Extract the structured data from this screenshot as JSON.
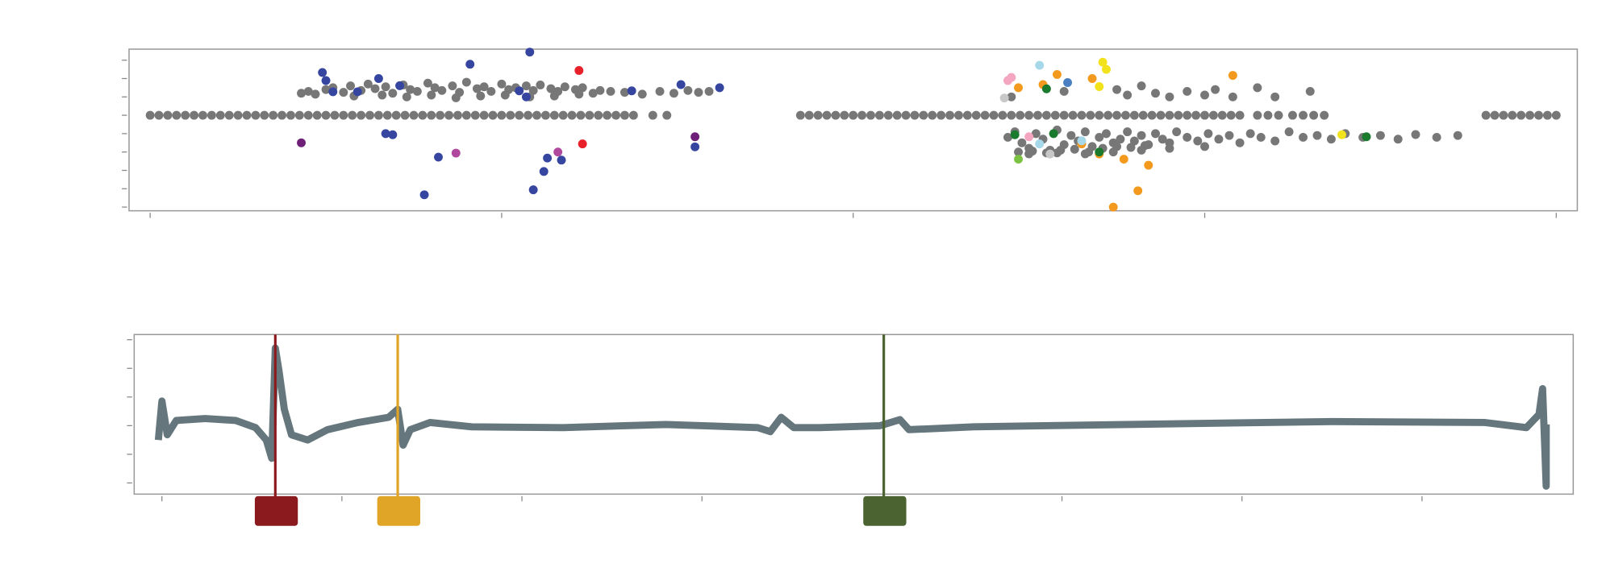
{
  "chart_data": [
    {
      "type": "scatter",
      "xlim": [
        -0.06,
        4.06
      ],
      "ylim": [
        -4.2,
        4.6
      ],
      "xticks": [
        0,
        1,
        2,
        3,
        4
      ],
      "yticks": [
        -4,
        -3,
        -2,
        -1,
        0,
        1,
        2,
        3,
        4
      ],
      "series": [
        {
          "color": "#777777",
          "x": [
            0,
            0.025,
            0.05,
            0.075,
            0.1,
            0.125,
            0.15,
            0.175,
            0.2,
            0.225,
            0.25,
            0.275,
            0.3,
            0.325,
            0.35,
            0.375,
            0.4,
            0.425,
            0.45,
            0.475,
            0.5,
            0.525,
            0.55,
            0.575,
            0.6,
            0.625,
            0.65,
            0.675,
            0.7,
            0.725,
            0.75,
            0.775,
            0.8,
            0.825,
            0.85,
            0.875,
            0.9,
            0.925,
            0.95,
            0.975,
            1,
            1.025,
            1.05,
            1.075,
            1.1,
            1.125,
            1.15,
            1.175,
            1.2,
            1.225,
            1.25,
            1.275,
            1.3,
            1.325,
            1.35,
            1.375,
            1.43,
            1.47
          ],
          "values": [
            1,
            1,
            1,
            1,
            1,
            1,
            1,
            1,
            1,
            1,
            1,
            1,
            1,
            1,
            1,
            1,
            1,
            1,
            1,
            1,
            1,
            1,
            1,
            1,
            1,
            1,
            1,
            1,
            1,
            1,
            1,
            1,
            1,
            1,
            1,
            1,
            1,
            1,
            1,
            1,
            1,
            1,
            1,
            1,
            1,
            1,
            1,
            1,
            1,
            1,
            1,
            1,
            1,
            1,
            1,
            1,
            1,
            1
          ]
        },
        {
          "color": "#777777",
          "x": [
            1.85,
            1.875,
            1.9,
            1.925,
            1.95,
            1.975,
            2,
            2.025,
            2.05,
            2.075,
            2.1,
            2.125,
            2.15,
            2.175,
            2.2,
            2.225,
            2.25,
            2.275,
            2.3,
            2.325,
            2.35,
            2.375,
            2.4,
            2.425,
            2.45,
            2.475,
            2.5,
            2.525,
            2.55,
            2.575,
            2.6,
            2.625,
            2.65,
            2.675,
            2.7,
            2.725,
            2.75,
            2.775,
            2.8,
            2.825,
            2.85,
            2.875,
            2.9,
            2.925,
            2.95,
            2.975,
            3,
            3.025,
            3.05,
            3.075,
            3.1,
            3.15,
            3.18,
            3.21,
            3.25,
            3.28,
            3.31,
            3.34,
            3.8,
            3.825,
            3.85,
            3.875,
            3.9,
            3.925,
            3.95,
            3.975,
            4
          ],
          "values": [
            1,
            1,
            1,
            1,
            1,
            1,
            1,
            1,
            1,
            1,
            1,
            1,
            1,
            1,
            1,
            1,
            1,
            1,
            1,
            1,
            1,
            1,
            1,
            1,
            1,
            1,
            1,
            1,
            1,
            1,
            1,
            1,
            1,
            1,
            1,
            1,
            1,
            1,
            1,
            1,
            1,
            1,
            1,
            1,
            1,
            1,
            1,
            1,
            1,
            1,
            1,
            1,
            1,
            1,
            1,
            1,
            1,
            1,
            1,
            1,
            1,
            1,
            1,
            1,
            1,
            1,
            1
          ]
        },
        {
          "color": "#777777",
          "x": [
            0.43,
            0.45,
            0.47,
            0.5,
            0.52,
            0.55,
            0.57,
            0.6,
            0.62,
            0.64,
            0.67,
            0.69,
            0.72,
            0.74,
            0.76,
            0.79,
            0.81,
            0.83,
            0.86,
            0.88,
            0.9,
            0.93,
            0.95,
            0.97,
            1.0,
            1.02,
            1.04,
            1.07,
            1.09,
            1.11,
            1.14,
            1.16,
            1.18,
            1.21,
            1.23,
            1.26,
            1.28,
            1.31,
            1.35,
            1.4,
            1.45,
            1.49,
            1.53,
            1.56,
            1.59,
            0.58,
            0.66,
            0.73,
            0.8,
            0.87,
            0.94,
            1.01,
            1.08,
            1.15,
            1.22
          ],
          "values": [
            2.2,
            2.3,
            2.15,
            2.4,
            2.5,
            2.25,
            2.6,
            2.35,
            2.7,
            2.45,
            2.55,
            2.2,
            2.65,
            2.4,
            2.3,
            2.75,
            2.5,
            2.35,
            2.6,
            2.25,
            2.8,
            2.45,
            2.55,
            2.3,
            2.7,
            2.4,
            2.5,
            2.6,
            2.35,
            2.65,
            2.45,
            2.3,
            2.55,
            2.4,
            2.5,
            2.2,
            2.35,
            2.3,
            2.25,
            2.15,
            2.3,
            2.2,
            2.35,
            2.25,
            2.3,
            2.05,
            2.1,
            2.0,
            2.1,
            1.95,
            2.05,
            2.1,
            2.0,
            2.05,
            2.15
          ]
        },
        {
          "color": "#777777",
          "x": [
            2.44,
            2.46,
            2.48,
            2.5,
            2.52,
            2.54,
            2.56,
            2.58,
            2.6,
            2.62,
            2.64,
            2.66,
            2.68,
            2.7,
            2.72,
            2.74,
            2.76,
            2.78,
            2.8,
            2.82,
            2.84,
            2.86,
            2.88,
            2.9,
            2.92,
            2.95,
            2.98,
            3.01,
            3.04,
            3.07,
            3.1,
            3.13,
            3.16,
            3.2,
            3.24,
            3.28,
            3.32,
            3.36,
            3.4,
            3.45,
            3.5,
            3.55,
            3.6,
            3.66,
            3.72,
            2.47,
            2.51,
            2.55,
            2.59,
            2.63,
            2.67,
            2.71,
            2.75,
            2.79,
            2.83,
            2.5,
            2.58,
            2.66,
            2.74,
            2.82,
            2.9,
            3.0
          ],
          "values": [
            -0.2,
            0.1,
            -0.5,
            -0.8,
            0,
            -0.3,
            -0.9,
            0.2,
            -0.6,
            -0.1,
            -0.4,
            0.1,
            -0.7,
            -0.2,
            0,
            -0.5,
            -0.3,
            0.1,
            -0.4,
            -0.1,
            -0.6,
            0,
            -0.3,
            -0.5,
            0.1,
            -0.2,
            -0.4,
            0,
            -0.3,
            -0.1,
            -0.5,
            0,
            -0.2,
            -0.4,
            0.1,
            -0.2,
            -0.1,
            -0.3,
            0,
            -0.2,
            -0.1,
            -0.3,
            -0.05,
            -0.2,
            -0.1,
            -1.0,
            -0.95,
            -1.05,
            -0.9,
            -0.85,
            -1.0,
            -0.8,
            -0.7,
            -0.75,
            -0.65,
            -1.1,
            -1.05,
            -1.1,
            -1.0,
            -0.9,
            -0.8,
            -0.7
          ]
        },
        {
          "color": "#777777",
          "x": [
            2.45,
            2.6,
            2.75,
            2.78,
            2.82,
            2.86,
            2.9,
            2.95,
            3.0,
            3.03,
            3.08,
            3.15,
            3.2,
            3.3
          ],
          "values": [
            2.0,
            2.3,
            2.4,
            2.1,
            2.6,
            2.2,
            2.0,
            2.3,
            2.1,
            2.4,
            2.0,
            2.5,
            2.0,
            2.3
          ]
        },
        {
          "color": "#3646a0",
          "x": [
            0.49,
            0.5,
            0.65,
            0.71,
            0.52,
            0.59,
            0.91,
            1.08,
            1.05,
            1.07,
            1.37,
            1.51,
            1.62,
            0.67,
            0.69,
            0.82,
            0.78,
            1.09,
            1.12,
            1.13,
            1.17,
            1.55
          ],
          "values": [
            3.33,
            2.89,
            3.0,
            2.61,
            2.28,
            2.28,
            3.78,
            4.44,
            2.33,
            2.0,
            2.33,
            2.67,
            2.5,
            0,
            -0.06,
            -1.28,
            -3.33,
            -3.06,
            -2.06,
            -1.33,
            -1.44,
            -0.72
          ]
        },
        {
          "color": "#6e1f78",
          "x": [
            0.43,
            1.55
          ],
          "values": [
            -0.5,
            -0.17
          ]
        },
        {
          "color": "#b0489e",
          "x": [
            0.87,
            1.16
          ],
          "values": [
            -1.06,
            -1.0
          ]
        },
        {
          "color": "#e8202a",
          "x": [
            1.22,
            1.23
          ],
          "values": [
            3.44,
            -0.56
          ]
        },
        {
          "color": "#f39a1e",
          "x": [
            2.58,
            2.68,
            2.54,
            3.08,
            2.77,
            2.84,
            2.81,
            2.74,
            2.47,
            2.65,
            2.7
          ],
          "values": [
            3.22,
            3.0,
            2.67,
            3.17,
            -1.39,
            -1.72,
            -3.11,
            -4.0,
            2.5,
            -0.56,
            -1.11
          ]
        },
        {
          "color": "#f2e21b",
          "x": [
            2.71,
            2.72,
            2.7,
            3.39
          ],
          "values": [
            3.89,
            3.5,
            2.56,
            -0.06
          ]
        },
        {
          "color": "#4a7fc1",
          "x": [
            2.61
          ],
          "values": [
            2.78
          ]
        },
        {
          "color": "#a6d8ea",
          "x": [
            2.53,
            2.53,
            2.65
          ],
          "values": [
            3.72,
            -0.56,
            -0.39
          ]
        },
        {
          "color": "#1a7a2e",
          "x": [
            2.55,
            2.46,
            2.57,
            3.46,
            2.7
          ],
          "values": [
            2.44,
            -0.06,
            0,
            -0.17,
            -1.0
          ]
        },
        {
          "color": "#7cc242",
          "x": [
            2.47
          ],
          "values": [
            -1.39
          ]
        },
        {
          "color": "#f4a6c0",
          "x": [
            2.44,
            2.45,
            2.5
          ],
          "values": [
            2.89,
            3.06,
            -0.17
          ]
        },
        {
          "color": "#c8c8c8",
          "x": [
            2.43,
            2.56
          ],
          "values": [
            1.94,
            -1.11
          ]
        }
      ]
    },
    {
      "type": "line",
      "xlim": [
        -0.154,
        7.84
      ],
      "ylim": [
        -0.39,
        5.18
      ],
      "xticks": [
        0,
        1,
        2,
        3,
        4,
        5,
        6,
        7
      ],
      "yticks": [
        0,
        1,
        2,
        3,
        4,
        5
      ],
      "series": [
        {
          "color": "#4a5f66",
          "x": [
            -0.02,
            0,
            0.03,
            0.08,
            0.24,
            0.41,
            0.52,
            0.58,
            0.61,
            0.63,
            0.65,
            0.68,
            0.72,
            0.81,
            0.92,
            1.09,
            1.26,
            1.31,
            1.34,
            1.38,
            1.49,
            1.72,
            2.23,
            2.8,
            3.31,
            3.38,
            3.44,
            3.51,
            3.65,
            3.99,
            4.1,
            4.15,
            4.51,
            5.36,
            6.5,
            7.35,
            7.58,
            7.65,
            7.67,
            7.69,
            7.69
          ],
          "values": [
            1.5,
            2.86,
            1.68,
            2.18,
            2.25,
            2.18,
            1.93,
            1.5,
            0.86,
            4.71,
            3.93,
            2.57,
            1.68,
            1.5,
            1.86,
            2.11,
            2.29,
            2.57,
            1.32,
            1.86,
            2.11,
            1.96,
            1.93,
            2.04,
            1.93,
            1.79,
            2.29,
            1.93,
            1.93,
            2.0,
            2.21,
            1.86,
            1.96,
            2.04,
            2.14,
            2.11,
            1.93,
            2.39,
            3.29,
            -0.11,
            2.04
          ]
        }
      ],
      "markers": [
        {
          "x": 0.63,
          "color": "#8b1a1e"
        },
        {
          "x": 1.31,
          "color": "#e0a526"
        },
        {
          "x": 4.01,
          "color": "#4a6330"
        }
      ]
    }
  ]
}
